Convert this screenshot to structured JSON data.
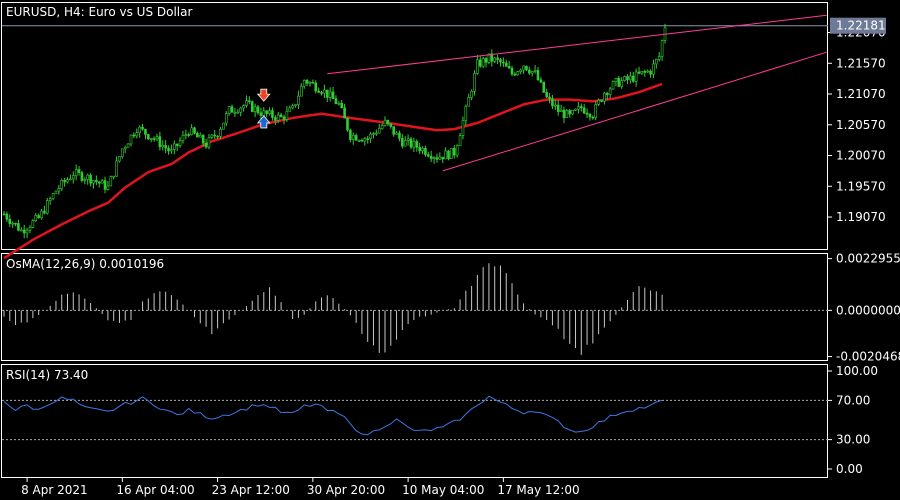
{
  "chart_data": [
    {
      "type": "candlestick",
      "title": "EURUSD, H4:  Euro vs US Dollar",
      "y_ticks": [
        "1.22070",
        "1.21570",
        "1.21070",
        "1.20570",
        "1.20070",
        "1.19570",
        "1.19070"
      ],
      "ylim": [
        1.1855,
        1.2255
      ],
      "current_price_label": "1.22181",
      "current_price": 1.22181,
      "candle_color": "#32cd32",
      "ma_color": "#e0141e",
      "trendline_color": "#ff3c96",
      "close_path": [
        [
          0,
          1.1912
        ],
        [
          6,
          1.1885
        ],
        [
          12,
          1.1905
        ],
        [
          18,
          1.195
        ],
        [
          24,
          1.1978
        ],
        [
          30,
          1.197
        ],
        [
          36,
          1.1955
        ],
        [
          41,
          1.2018
        ],
        [
          46,
          1.2052
        ],
        [
          52,
          1.2035
        ],
        [
          58,
          1.2012
        ],
        [
          64,
          1.2048
        ],
        [
          70,
          1.2025
        ],
        [
          74,
          1.2045
        ],
        [
          78,
          1.208
        ],
        [
          84,
          1.209
        ],
        [
          90,
          1.2075
        ],
        [
          96,
          1.2068
        ],
        [
          100,
          1.2082
        ],
        [
          104,
          1.213
        ],
        [
          110,
          1.2115
        ],
        [
          116,
          1.209
        ],
        [
          120,
          1.204
        ],
        [
          126,
          1.2035
        ],
        [
          132,
          1.206
        ],
        [
          138,
          1.203
        ],
        [
          144,
          1.202
        ],
        [
          150,
          1.2005
        ],
        [
          156,
          1.2012
        ],
        [
          160,
          1.208
        ],
        [
          164,
          1.2155
        ],
        [
          168,
          1.2165
        ],
        [
          172,
          1.2158
        ],
        [
          176,
          1.214
        ],
        [
          180,
          1.2155
        ],
        [
          184,
          1.214
        ],
        [
          188,
          1.21
        ],
        [
          192,
          1.208
        ],
        [
          196,
          1.207
        ],
        [
          200,
          1.2085
        ],
        [
          204,
          1.2075
        ],
        [
          208,
          1.211
        ],
        [
          212,
          1.2125
        ],
        [
          216,
          1.213
        ],
        [
          220,
          1.2138
        ],
        [
          224,
          1.2145
        ],
        [
          227,
          1.2168
        ],
        [
          229,
          1.2218
        ]
      ],
      "ma_path": [
        [
          0,
          1.184
        ],
        [
          10,
          1.187
        ],
        [
          20,
          1.1895
        ],
        [
          30,
          1.1918
        ],
        [
          36,
          1.193
        ],
        [
          42,
          1.1955
        ],
        [
          50,
          1.198
        ],
        [
          58,
          1.1993
        ],
        [
          64,
          1.2012
        ],
        [
          72,
          1.203
        ],
        [
          80,
          1.2042
        ],
        [
          90,
          1.2058
        ],
        [
          100,
          1.2068
        ],
        [
          110,
          1.2075
        ],
        [
          120,
          1.2068
        ],
        [
          130,
          1.2062
        ],
        [
          140,
          1.2055
        ],
        [
          150,
          1.2048
        ],
        [
          156,
          1.205
        ],
        [
          164,
          1.206
        ],
        [
          172,
          1.2075
        ],
        [
          180,
          1.209
        ],
        [
          188,
          1.2098
        ],
        [
          196,
          1.2098
        ],
        [
          204,
          1.2095
        ],
        [
          212,
          1.21
        ],
        [
          220,
          1.211
        ],
        [
          229,
          1.2125
        ]
      ],
      "trendlines": [
        {
          "from": [
            112,
            1.214
          ],
          "to": [
            285,
            1.2235
          ]
        },
        {
          "from": [
            152,
            1.1982
          ],
          "to": [
            285,
            1.2175
          ]
        }
      ],
      "signals": [
        {
          "bar": 90,
          "type": "sell",
          "price": 1.2102
        },
        {
          "bar": 90,
          "type": "buy",
          "price": 1.206
        }
      ]
    },
    {
      "type": "bar",
      "title": "OsMA(12,26,9) 0.0010196",
      "y_ticks": [
        "0.0022955",
        "0.0000000",
        "-0.0020468"
      ],
      "ylim": [
        -0.0022,
        0.0025
      ],
      "zero_line": 0,
      "bar_color": "#c8c8c8",
      "series_path": [
        [
          0,
          -0.0003
        ],
        [
          4,
          -0.0006
        ],
        [
          8,
          -0.0005
        ],
        [
          12,
          -0.0002
        ],
        [
          16,
          0.0002
        ],
        [
          20,
          0.0007
        ],
        [
          24,
          0.0008
        ],
        [
          28,
          0.0005
        ],
        [
          32,
          0.0001
        ],
        [
          36,
          -0.0004
        ],
        [
          40,
          -0.0006
        ],
        [
          44,
          -0.0004
        ],
        [
          48,
          0.0004
        ],
        [
          52,
          0.0007
        ],
        [
          56,
          0.0009
        ],
        [
          60,
          0.0005
        ],
        [
          64,
          0.0
        ],
        [
          68,
          -0.0006
        ],
        [
          72,
          -0.001
        ],
        [
          76,
          -0.0006
        ],
        [
          80,
          -0.0002
        ],
        [
          84,
          0.0002
        ],
        [
          88,
          0.0007
        ],
        [
          92,
          0.001
        ],
        [
          96,
          0.0004
        ],
        [
          100,
          -0.0004
        ],
        [
          104,
          -0.0002
        ],
        [
          108,
          0.0004
        ],
        [
          112,
          0.0007
        ],
        [
          116,
          0.0003
        ],
        [
          120,
          -0.0002
        ],
        [
          124,
          -0.001
        ],
        [
          128,
          -0.0017
        ],
        [
          132,
          -0.0018
        ],
        [
          136,
          -0.0012
        ],
        [
          140,
          -0.0006
        ],
        [
          144,
          -0.0003
        ],
        [
          148,
          -0.0002
        ],
        [
          152,
          0.0
        ],
        [
          156,
          0.0001
        ],
        [
          160,
          0.0008
        ],
        [
          164,
          0.0016
        ],
        [
          168,
          0.0022
        ],
        [
          172,
          0.002
        ],
        [
          176,
          0.0012
        ],
        [
          180,
          0.0003
        ],
        [
          184,
          -0.0002
        ],
        [
          188,
          -0.0004
        ],
        [
          192,
          -0.0009
        ],
        [
          196,
          -0.0016
        ],
        [
          200,
          -0.0019
        ],
        [
          204,
          -0.0014
        ],
        [
          208,
          -0.0007
        ],
        [
          212,
          -0.0002
        ],
        [
          216,
          0.0005
        ],
        [
          220,
          0.001
        ],
        [
          224,
          0.0009
        ],
        [
          228,
          0.0007
        ],
        [
          229,
          0.001
        ]
      ]
    },
    {
      "type": "line",
      "title": "RSI(14) 73.40",
      "y_ticks": [
        "100.00",
        "70.00",
        "30.00",
        "0.00"
      ],
      "ylim": [
        0,
        100
      ],
      "levels": [
        70,
        30
      ],
      "line_color": "#3c78e6",
      "series_path": [
        [
          0,
          70
        ],
        [
          4,
          60
        ],
        [
          8,
          65
        ],
        [
          12,
          60
        ],
        [
          16,
          68
        ],
        [
          20,
          72
        ],
        [
          24,
          70
        ],
        [
          28,
          62
        ],
        [
          32,
          60
        ],
        [
          36,
          58
        ],
        [
          40,
          64
        ],
        [
          44,
          68
        ],
        [
          48,
          72
        ],
        [
          52,
          66
        ],
        [
          56,
          60
        ],
        [
          60,
          55
        ],
        [
          64,
          60
        ],
        [
          68,
          56
        ],
        [
          72,
          52
        ],
        [
          76,
          55
        ],
        [
          80,
          58
        ],
        [
          84,
          62
        ],
        [
          88,
          66
        ],
        [
          92,
          64
        ],
        [
          96,
          58
        ],
        [
          100,
          56
        ],
        [
          104,
          64
        ],
        [
          108,
          66
        ],
        [
          112,
          60
        ],
        [
          116,
          56
        ],
        [
          120,
          48
        ],
        [
          124,
          34
        ],
        [
          128,
          38
        ],
        [
          132,
          45
        ],
        [
          136,
          50
        ],
        [
          140,
          42
        ],
        [
          144,
          38
        ],
        [
          148,
          40
        ],
        [
          152,
          42
        ],
        [
          156,
          48
        ],
        [
          160,
          55
        ],
        [
          164,
          66
        ],
        [
          168,
          74
        ],
        [
          172,
          68
        ],
        [
          176,
          62
        ],
        [
          180,
          58
        ],
        [
          184,
          60
        ],
        [
          188,
          54
        ],
        [
          192,
          48
        ],
        [
          196,
          40
        ],
        [
          200,
          38
        ],
        [
          204,
          44
        ],
        [
          208,
          50
        ],
        [
          212,
          56
        ],
        [
          216,
          60
        ],
        [
          220,
          62
        ],
        [
          224,
          64
        ],
        [
          228,
          70
        ],
        [
          229,
          73.4
        ]
      ]
    }
  ],
  "x_axis": {
    "labels": [
      {
        "text": "8 Apr 2021",
        "bar": 8
      },
      {
        "text": "16 Apr 04:00",
        "bar": 41
      },
      {
        "text": "23 Apr 12:00",
        "bar": 74
      },
      {
        "text": "30 Apr 20:00",
        "bar": 107
      },
      {
        "text": "10 May 04:00",
        "bar": 140
      },
      {
        "text": "17 May 12:00",
        "bar": 173
      }
    ]
  }
}
